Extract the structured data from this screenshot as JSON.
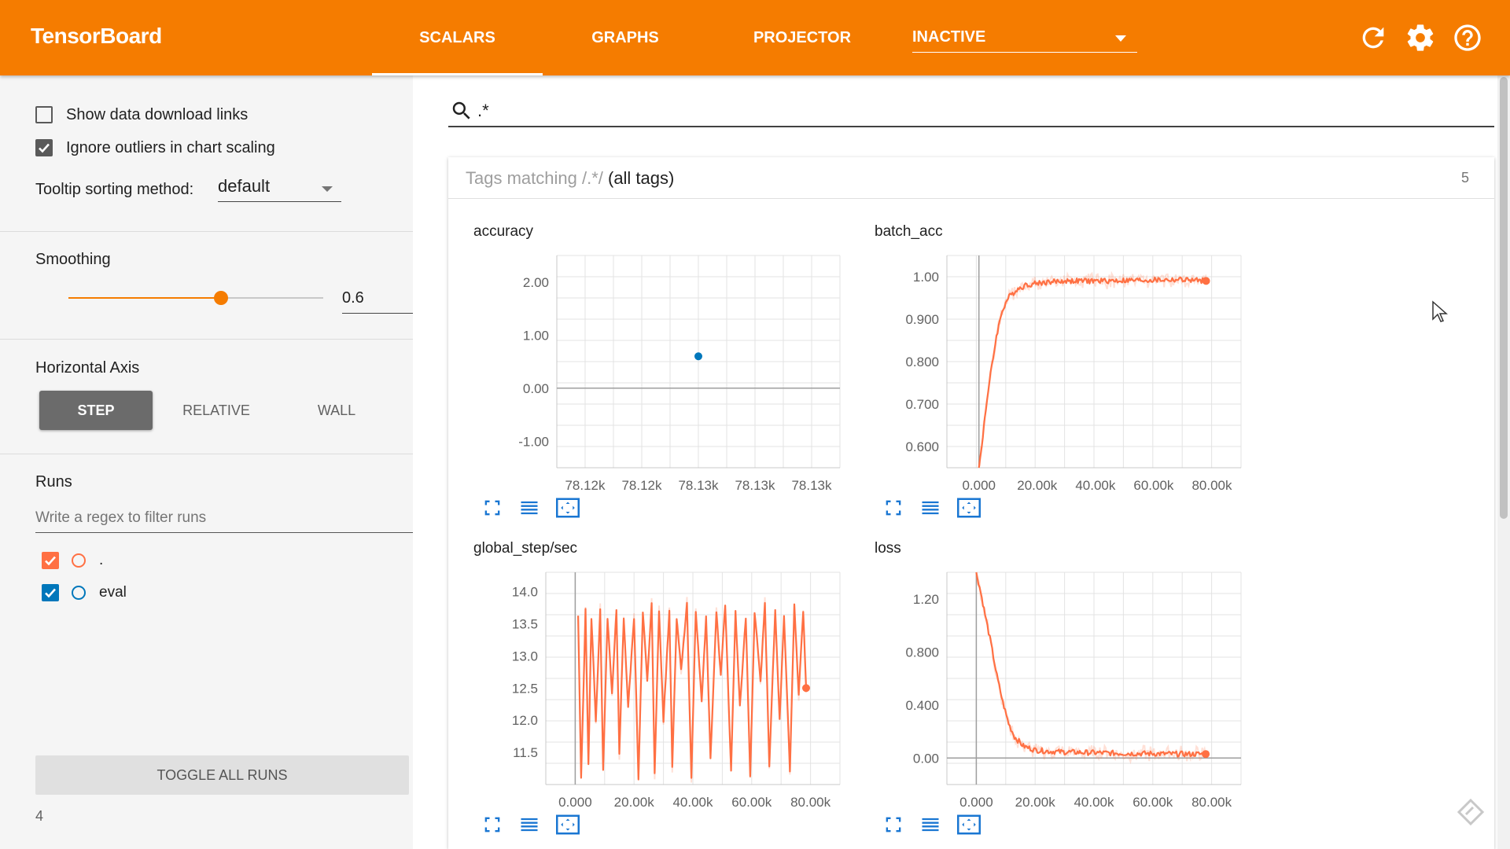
{
  "header": {
    "title": "TensorBoard",
    "tabs": [
      {
        "label": "SCALARS",
        "active": true
      },
      {
        "label": "GRAPHS",
        "active": false
      },
      {
        "label": "PROJECTOR",
        "active": false
      }
    ],
    "inactive_label": "INACTIVE",
    "icons": [
      "refresh-icon",
      "gear-icon",
      "help-icon"
    ]
  },
  "sidebar": {
    "show_download_links": {
      "label": "Show data download links",
      "checked": false
    },
    "ignore_outliers": {
      "label": "Ignore outliers in chart scaling",
      "checked": true
    },
    "tooltip_sort": {
      "label": "Tooltip sorting method:",
      "value": "default"
    },
    "smoothing": {
      "label": "Smoothing",
      "value": "0.6",
      "level": 0.6
    },
    "horizontal_axis": {
      "label": "Horizontal Axis",
      "options": [
        "STEP",
        "RELATIVE",
        "WALL"
      ],
      "selected": "STEP"
    },
    "runs": {
      "label": "Runs",
      "filter_placeholder": "Write a regex to filter runs",
      "items": [
        {
          "name": ".",
          "checked": true,
          "color": "#ff7043"
        },
        {
          "name": "eval",
          "checked": true,
          "color": "#0077bb"
        }
      ]
    },
    "toggle_all": "TOGGLE ALL RUNS",
    "footer_count": "4"
  },
  "search": {
    "value": ".*"
  },
  "tags": {
    "prefix": "Tags matching ",
    "pattern": "/.*/",
    "suffix": " (all tags)",
    "count": "5"
  },
  "colors": {
    "accent": "#f57c00",
    "train": "#ff7043",
    "eval": "#0077bb"
  },
  "charts": [
    {
      "title": "accuracy",
      "chart_data": {
        "type": "scatter",
        "xlabel": "",
        "ylabel": "",
        "x_ticks": [
          "78.12k",
          "78.12k",
          "78.13k",
          "78.13k",
          "78.13k"
        ],
        "y_ticks": [
          "2.00",
          "1.00",
          "0.00",
          "-1.00"
        ],
        "ylim": [
          -1.5,
          2.5
        ],
        "series": [
          {
            "name": "eval",
            "points": [
              [
                78128,
                0.6
              ]
            ]
          }
        ]
      }
    },
    {
      "title": "batch_acc",
      "chart_data": {
        "type": "line",
        "xlabel": "",
        "ylabel": "",
        "x_ticks": [
          "0.000",
          "20.00k",
          "40.00k",
          "60.00k",
          "80.00k"
        ],
        "y_ticks": [
          "1.00",
          "0.900",
          "0.800",
          "0.700",
          "0.600"
        ],
        "xlim": [
          -11000,
          90000
        ],
        "ylim": [
          0.55,
          1.05
        ],
        "series": [
          {
            "name": ".",
            "x": [
              0,
              1000,
              2000,
              4000,
              6000,
              8000,
              10000,
              13000,
              16000,
              20000,
              25000,
              30000,
              40000,
              50000,
              60000,
              70000,
              78000
            ],
            "y": [
              0.55,
              0.6,
              0.67,
              0.77,
              0.86,
              0.92,
              0.95,
              0.97,
              0.98,
              0.985,
              0.988,
              0.99,
              0.99,
              0.991,
              0.992,
              0.993,
              0.99
            ]
          }
        ]
      }
    },
    {
      "title": "global_step/sec",
      "chart_data": {
        "type": "line",
        "xlabel": "",
        "ylabel": "",
        "x_ticks": [
          "0.000",
          "20.00k",
          "40.00k",
          "60.00k",
          "80.00k"
        ],
        "y_ticks": [
          "14.0",
          "13.5",
          "13.0",
          "12.5",
          "12.0",
          "11.5"
        ],
        "xlim": [
          -10000,
          90000
        ],
        "ylim": [
          11.0,
          14.3
        ],
        "series": [
          {
            "name": ".",
            "x": [
              1000,
              2000,
              3500,
              4500,
              5500,
              7000,
              8500,
              9500,
              11000,
              12500,
              14000,
              15000,
              16500,
              18000,
              20000,
              21500,
              23000,
              24500,
              26000,
              27000,
              28500,
              30000,
              32000,
              33000,
              34500,
              36000,
              38000,
              39500,
              41000,
              43000,
              44500,
              46000,
              48000,
              49500,
              51000,
              53000,
              54500,
              56000,
              58000,
              59500,
              61000,
              63000,
              64500,
              66000,
              68000,
              69500,
              71000,
              73000,
              74500,
              76000,
              77500,
              78500
            ],
            "y": [
              13.6,
              11.1,
              13.7,
              11.3,
              13.6,
              12.0,
              13.7,
              11.2,
              13.6,
              12.4,
              13.7,
              11.5,
              13.6,
              12.2,
              13.6,
              11.1,
              13.7,
              12.6,
              13.8,
              11.2,
              13.7,
              12.0,
              13.7,
              11.3,
              13.6,
              12.8,
              13.8,
              11.1,
              13.7,
              12.3,
              13.6,
              11.4,
              13.7,
              12.7,
              13.8,
              11.2,
              13.7,
              12.2,
              13.6,
              11.1,
              13.7,
              12.6,
              13.8,
              11.3,
              13.7,
              12.0,
              13.6,
              11.2,
              13.8,
              12.4,
              13.7,
              12.5
            ]
          }
        ]
      }
    },
    {
      "title": "loss",
      "chart_data": {
        "type": "line",
        "xlabel": "",
        "ylabel": "",
        "x_ticks": [
          "0.000",
          "20.00k",
          "40.00k",
          "60.00k",
          "80.00k"
        ],
        "y_ticks": [
          "1.20",
          "0.800",
          "0.400",
          "0.00"
        ],
        "xlim": [
          -10000,
          90000
        ],
        "ylim": [
          -0.2,
          1.4
        ],
        "series": [
          {
            "name": ".",
            "x": [
              0,
              1500,
              3000,
              5000,
              7000,
              9000,
              11000,
              13000,
              16000,
              20000,
              25000,
              30000,
              40000,
              50000,
              60000,
              70000,
              78000
            ],
            "y": [
              1.4,
              1.25,
              1.08,
              0.86,
              0.62,
              0.42,
              0.26,
              0.16,
              0.09,
              0.06,
              0.05,
              0.045,
              0.04,
              0.035,
              0.033,
              0.03,
              0.03
            ]
          }
        ]
      }
    }
  ]
}
